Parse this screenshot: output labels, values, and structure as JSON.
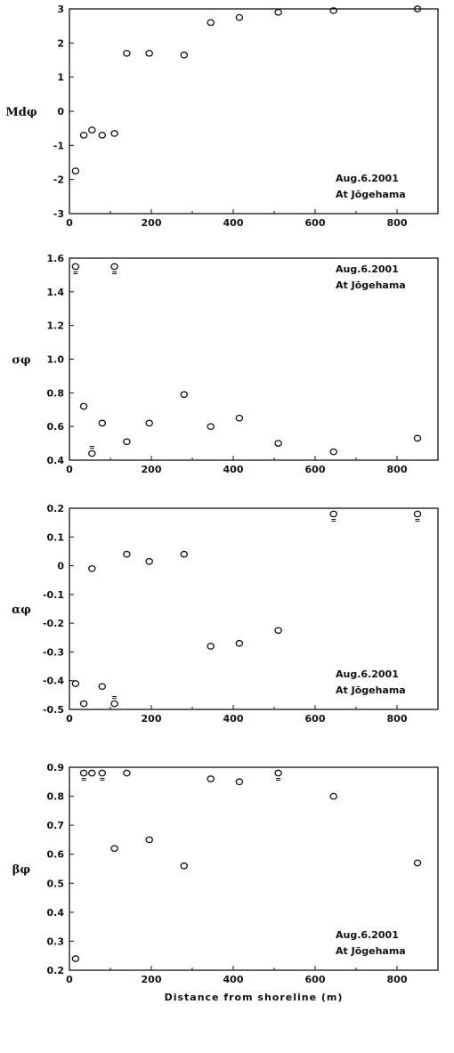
{
  "chart_data": [
    {
      "type": "scatter",
      "ylabel": "Mdφ",
      "xlim": [
        0,
        900
      ],
      "ylim": [
        -3,
        3
      ],
      "xticks": [
        0,
        200,
        400,
        600,
        800
      ],
      "yticks": [
        -3,
        -2,
        -1,
        0,
        1,
        2,
        3
      ],
      "annotation": [
        "Aug.6.2001",
        "At Jōgehama"
      ],
      "annotation_position": "bottom-right",
      "grid": false,
      "points": [
        {
          "x": 15,
          "y": -1.75
        },
        {
          "x": 35,
          "y": -0.7
        },
        {
          "x": 55,
          "y": -0.55
        },
        {
          "x": 80,
          "y": -0.7
        },
        {
          "x": 110,
          "y": -0.65
        },
        {
          "x": 140,
          "y": 1.7
        },
        {
          "x": 195,
          "y": 1.7
        },
        {
          "x": 280,
          "y": 1.65
        },
        {
          "x": 345,
          "y": 2.6
        },
        {
          "x": 415,
          "y": 2.75
        },
        {
          "x": 510,
          "y": 2.9
        },
        {
          "x": 645,
          "y": 2.95
        },
        {
          "x": 850,
          "y": 3.0
        }
      ]
    },
    {
      "type": "scatter",
      "ylabel": "σφ",
      "xlim": [
        0,
        900
      ],
      "ylim": [
        0.4,
        1.6
      ],
      "xticks": [
        0,
        200,
        400,
        600,
        800
      ],
      "yticks": [
        0.4,
        0.6,
        0.8,
        1.0,
        1.2,
        1.4,
        1.6
      ],
      "annotation": [
        "Aug.6.2001",
        "At Jōgehama"
      ],
      "annotation_position": "top-right",
      "grid": false,
      "points": [
        {
          "x": 15,
          "y": 1.55,
          "marker": "up"
        },
        {
          "x": 35,
          "y": 0.72
        },
        {
          "x": 55,
          "y": 0.44,
          "marker": "down"
        },
        {
          "x": 80,
          "y": 0.62
        },
        {
          "x": 110,
          "y": 1.55,
          "marker": "up"
        },
        {
          "x": 140,
          "y": 0.51
        },
        {
          "x": 195,
          "y": 0.62
        },
        {
          "x": 280,
          "y": 0.79
        },
        {
          "x": 345,
          "y": 0.6
        },
        {
          "x": 415,
          "y": 0.65
        },
        {
          "x": 510,
          "y": 0.5
        },
        {
          "x": 645,
          "y": 0.45
        },
        {
          "x": 850,
          "y": 0.53
        }
      ]
    },
    {
      "type": "scatter",
      "ylabel": "αφ",
      "xlim": [
        0,
        900
      ],
      "ylim": [
        -0.5,
        0.2
      ],
      "xticks": [
        0,
        200,
        400,
        600,
        800
      ],
      "yticks": [
        -0.5,
        -0.4,
        -0.3,
        -0.2,
        -0.1,
        0,
        0.1,
        0.2
      ],
      "yticklabels": [
        "-0.5",
        "-0.4",
        "-0.3",
        "-0.2",
        "-0.1",
        "0",
        "0.1",
        "0.2"
      ],
      "annotation": [
        "Aug.6.2001",
        "At Jōgehama"
      ],
      "annotation_position": "bottom-right",
      "grid": false,
      "points": [
        {
          "x": 15,
          "y": -0.41
        },
        {
          "x": 35,
          "y": -0.48
        },
        {
          "x": 55,
          "y": -0.01
        },
        {
          "x": 80,
          "y": -0.42
        },
        {
          "x": 110,
          "y": -0.48,
          "marker": "down"
        },
        {
          "x": 140,
          "y": 0.04
        },
        {
          "x": 195,
          "y": 0.015
        },
        {
          "x": 280,
          "y": 0.04
        },
        {
          "x": 345,
          "y": -0.28
        },
        {
          "x": 415,
          "y": -0.27
        },
        {
          "x": 510,
          "y": -0.225
        },
        {
          "x": 645,
          "y": 0.18,
          "marker": "up"
        },
        {
          "x": 850,
          "y": 0.18,
          "marker": "up"
        }
      ]
    },
    {
      "type": "scatter",
      "ylabel": "βφ",
      "xlabel": "Distance  from  shoreline   (m)",
      "xlim": [
        0,
        900
      ],
      "ylim": [
        0.2,
        0.9
      ],
      "xticks": [
        0,
        200,
        400,
        600,
        800
      ],
      "yticks": [
        0.2,
        0.3,
        0.4,
        0.5,
        0.6,
        0.7,
        0.8,
        0.9
      ],
      "annotation": [
        "Aug.6.2001",
        "At Jōgehama"
      ],
      "annotation_position": "bottom-right",
      "grid": false,
      "points": [
        {
          "x": 15,
          "y": 0.24
        },
        {
          "x": 35,
          "y": 0.88,
          "marker": "up"
        },
        {
          "x": 55,
          "y": 0.88
        },
        {
          "x": 80,
          "y": 0.88,
          "marker": "up"
        },
        {
          "x": 110,
          "y": 0.62
        },
        {
          "x": 140,
          "y": 0.88
        },
        {
          "x": 195,
          "y": 0.65
        },
        {
          "x": 280,
          "y": 0.56
        },
        {
          "x": 345,
          "y": 0.86
        },
        {
          "x": 415,
          "y": 0.85
        },
        {
          "x": 510,
          "y": 0.88,
          "marker": "up"
        },
        {
          "x": 645,
          "y": 0.8
        },
        {
          "x": 850,
          "y": 0.57
        }
      ]
    }
  ]
}
